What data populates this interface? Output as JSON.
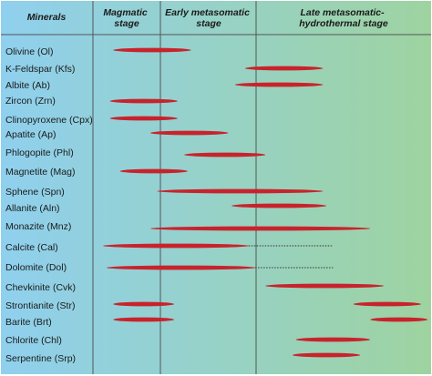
{
  "header": {
    "minerals": "Minerals",
    "stages": [
      [
        "Magmatic",
        "stage"
      ],
      [
        "Early metasomatic",
        "stage"
      ],
      [
        "Late metasomatic-",
        "hydrothermal stage"
      ]
    ]
  },
  "colors": {
    "bar": "#c8232c",
    "grid": "#555555",
    "gradient_left": "#8fd0ee",
    "gradient_right": "#9ed3a0"
  },
  "chart_data": {
    "type": "table",
    "timeline_units": "relative position along paragenetic sequence (0 = start of magmatic stage, 100 = end of late stage)",
    "stage_boundaries": [
      0,
      20.7,
      48.1,
      100
    ],
    "minerals": [
      {
        "name": "Olivine (Ol)",
        "bars": [
          [
            6,
            29
          ]
        ],
        "dotted": []
      },
      {
        "name": "K-Feldspar (Kfs)",
        "bars": [
          [
            45,
            68
          ]
        ],
        "dotted": []
      },
      {
        "name": "Albite (Ab)",
        "bars": [
          [
            42,
            68
          ]
        ],
        "dotted": []
      },
      {
        "name": "Zircon (Zrn)",
        "bars": [
          [
            5,
            25
          ]
        ],
        "dotted": []
      },
      {
        "name": "Clinopyroxene (Cpx)",
        "bars": [
          [
            5,
            25
          ]
        ],
        "dotted": []
      },
      {
        "name": "Apatite (Ap)",
        "bars": [
          [
            17,
            40
          ]
        ],
        "dotted": []
      },
      {
        "name": "Phlogopite (Phl)",
        "bars": [
          [
            27,
            51
          ]
        ],
        "dotted": []
      },
      {
        "name": "Magnetite (Mag)",
        "bars": [
          [
            8,
            28
          ]
        ],
        "dotted": []
      },
      {
        "name": "Sphene (Spn)",
        "bars": [
          [
            19,
            68
          ]
        ],
        "dotted": []
      },
      {
        "name": "Allanite (Aln)",
        "bars": [
          [
            41,
            69
          ]
        ],
        "dotted": []
      },
      {
        "name": "Monazite (Mnz)",
        "bars": [
          [
            17,
            82
          ]
        ],
        "dotted": []
      },
      {
        "name": "Calcite (Cal)",
        "bars": [
          [
            3,
            46
          ]
        ],
        "dotted": [
          [
            46,
            71
          ]
        ]
      },
      {
        "name": "Dolomite (Dol)",
        "bars": [
          [
            4,
            48
          ]
        ],
        "dotted": [
          [
            48,
            71
          ]
        ]
      },
      {
        "name": "Chevkinite (Cvk)",
        "bars": [
          [
            51,
            86
          ]
        ],
        "dotted": []
      },
      {
        "name": "Strontianite (Str)",
        "bars": [
          [
            6,
            24
          ],
          [
            77,
            97
          ]
        ],
        "dotted": []
      },
      {
        "name": "Barite (Brt)",
        "bars": [
          [
            6,
            24
          ],
          [
            82,
            99
          ]
        ],
        "dotted": []
      },
      {
        "name": "Chlorite (Chl)",
        "bars": [
          [
            60,
            82
          ]
        ],
        "dotted": []
      },
      {
        "name": "Serpentine (Srp)",
        "bars": [
          [
            59,
            79
          ]
        ],
        "dotted": []
      }
    ]
  }
}
